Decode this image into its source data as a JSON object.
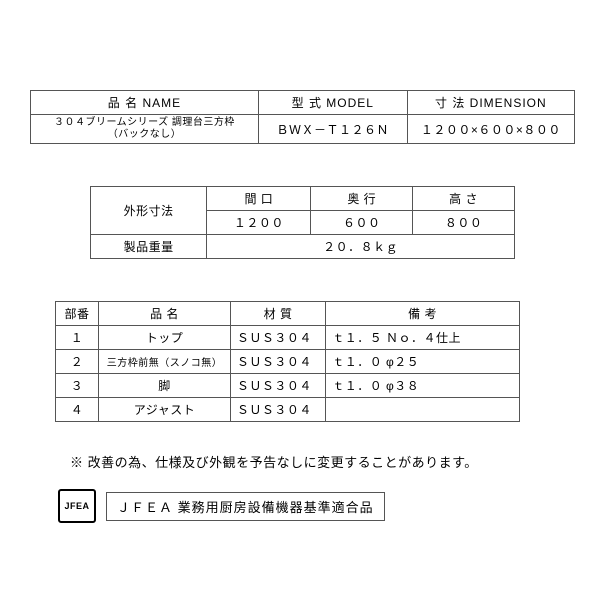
{
  "table1": {
    "headers": {
      "name": "品 名 NAME",
      "model": "型 式 MODEL",
      "dim": "寸 法 DIMENSION"
    },
    "row": {
      "name_line1": "３０４ブリームシリーズ 調理台三方枠",
      "name_line2": "（バックなし）",
      "model": "ＢＷＸ－Ｔ１２６Ｎ",
      "dim": "１２００×６００×８００"
    }
  },
  "table2": {
    "outer_label": "外形寸法",
    "weight_label": "製品重量",
    "headers": {
      "w": "間 口",
      "d": "奥 行",
      "h": "高 さ"
    },
    "values": {
      "w": "１２００",
      "d": "６００",
      "h": "８００"
    },
    "weight_value": "２０．８ｋｇ"
  },
  "table3": {
    "headers": {
      "no": "部番",
      "name": "品 名",
      "mat": "材 質",
      "rem": "備 考"
    },
    "rows": [
      {
        "no": "１",
        "name": "トップ",
        "mat": "ＳＵＳ３０４",
        "rem": "ｔ１．５ Ｎｏ．４仕上"
      },
      {
        "no": "２",
        "name": "三方枠前無（スノコ無）",
        "mat": "ＳＵＳ３０４",
        "rem": "ｔ１．０ φ２５",
        "small": true
      },
      {
        "no": "３",
        "name": "脚",
        "mat": "ＳＵＳ３０４",
        "rem": "ｔ１．０ φ３８"
      },
      {
        "no": "４",
        "name": "アジャスト",
        "mat": "ＳＵＳ３０４",
        "rem": ""
      }
    ]
  },
  "note": "※ 改善の為、仕様及び外観を予告なしに変更することがあります。",
  "jfea": {
    "logo": "JFEA",
    "text": "ＪＦＥＡ 業務用厨房設備機器基準適合品"
  }
}
